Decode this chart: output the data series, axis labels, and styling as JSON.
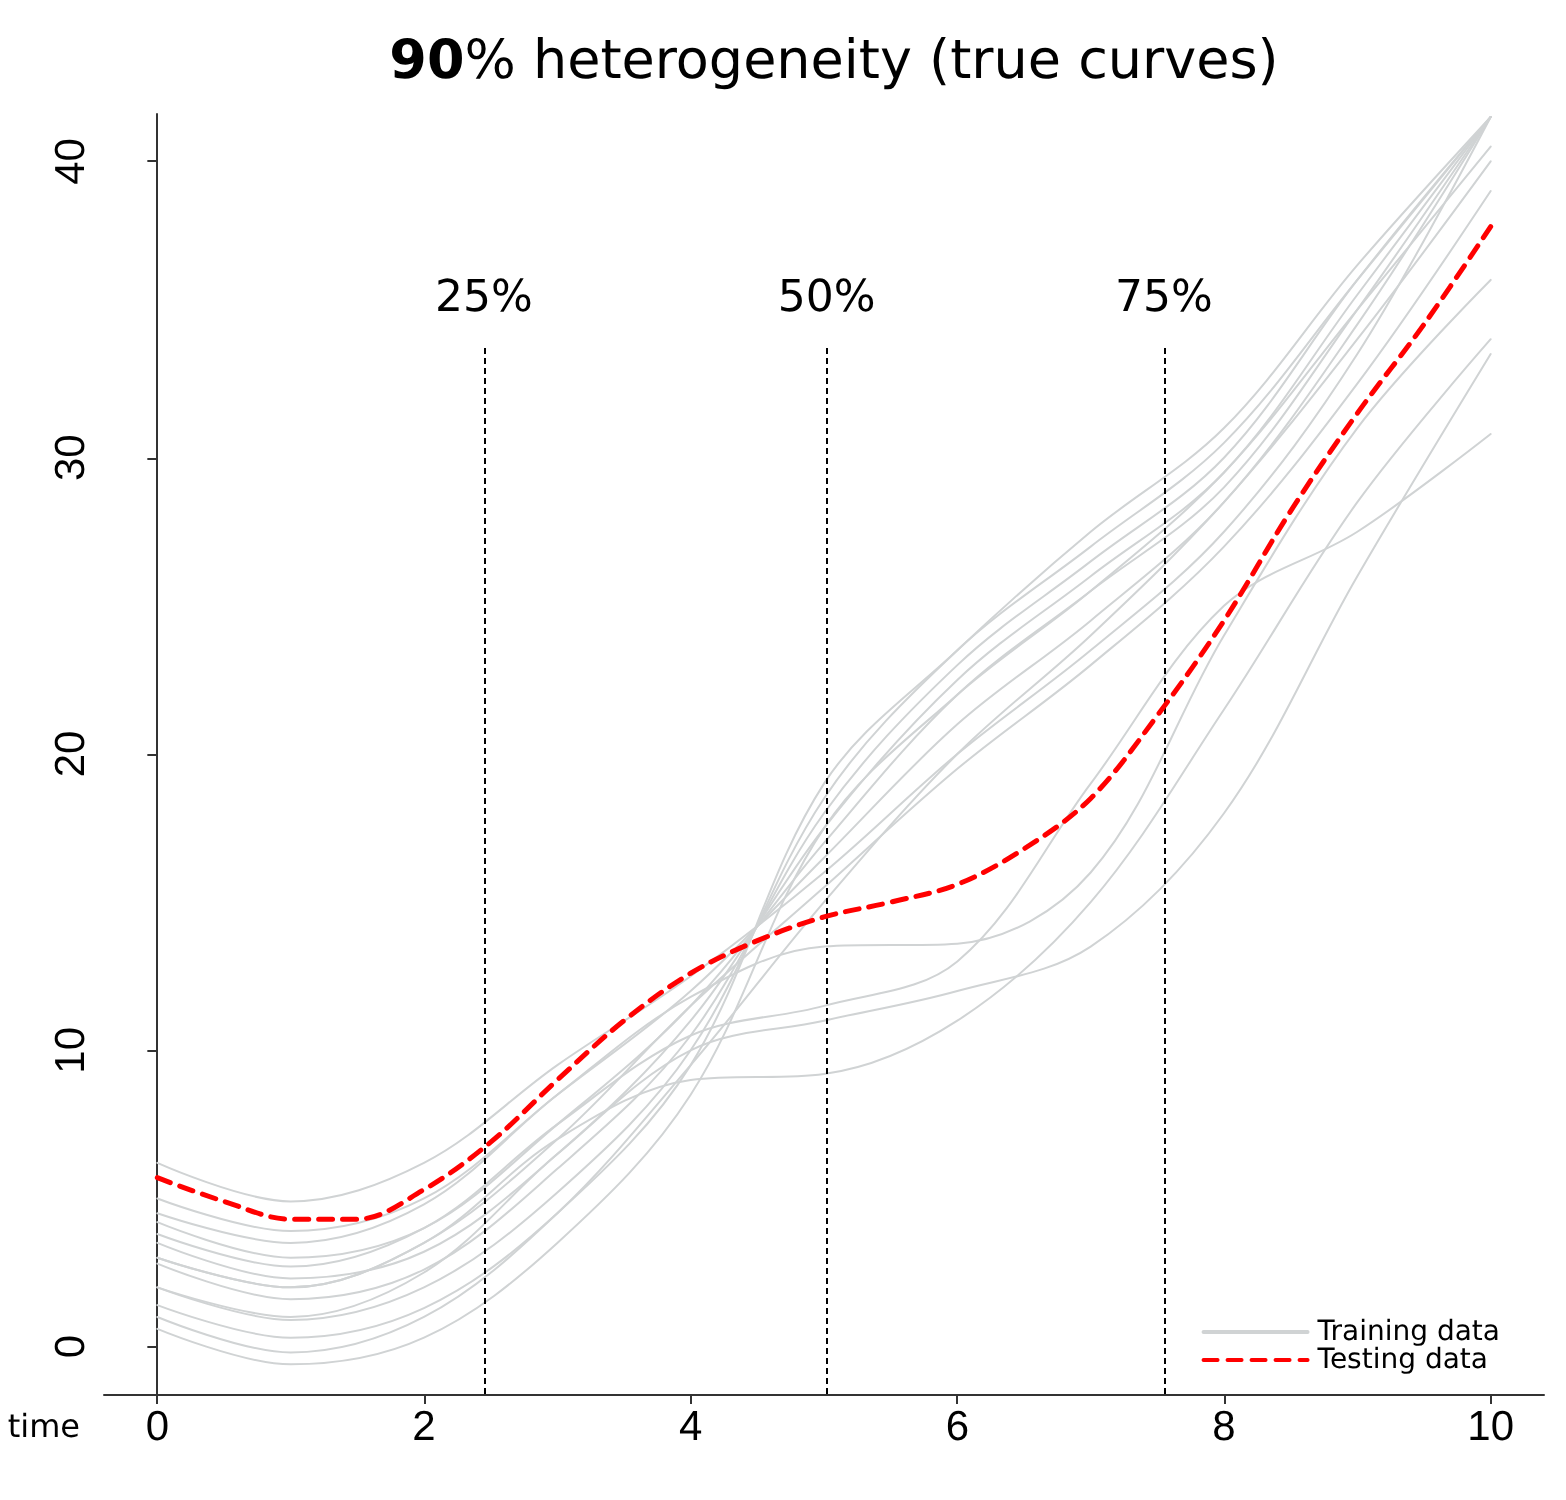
{
  "chart_data": {
    "type": "line",
    "title": "90% heterogeneity (true curves)",
    "xlabel": "time",
    "xlim": [
      -0.4,
      10.4
    ],
    "xticks": [
      0,
      2,
      4,
      6,
      8,
      10
    ],
    "ylim": [
      -1.6,
      41.6
    ],
    "yticks": [
      0,
      10,
      20,
      30,
      40
    ],
    "grid": false,
    "legend": "bottom right",
    "marker": "none",
    "ref_lines": [
      {
        "axis": "x",
        "value": 2.45
      },
      {
        "axis": "x",
        "value": 5.02
      },
      {
        "axis": "x",
        "value": 7.55
      }
    ],
    "annotations": [
      "25%",
      "50%",
      "75%"
    ],
    "series": [
      {
        "name": "Training data",
        "color": "#d0d3d4",
        "line_style": "solid",
        "x": [
          0,
          1,
          2,
          3,
          4,
          5,
          6,
          7,
          8,
          9,
          10
        ],
        "values": [
          6.2,
          4.9,
          6.2,
          9.5,
          12.5,
          16.0,
          20.0,
          23.5,
          27.5,
          33.5,
          41.5
        ]
      },
      {
        "color": "#d0d3d4",
        "line_style": "solid",
        "x": [
          0,
          1,
          2,
          3,
          4,
          5,
          6,
          7,
          8,
          9,
          10
        ],
        "values": [
          5.0,
          3.9,
          5.0,
          8.5,
          12.0,
          16.5,
          21.0,
          24.5,
          28.5,
          34.5,
          41.5
        ]
      },
      {
        "color": "#d0d3d4",
        "line_style": "solid",
        "x": [
          0,
          1,
          2,
          3,
          4,
          5,
          6,
          7,
          8,
          9,
          10
        ],
        "values": [
          4.2,
          3.0,
          4.0,
          7.5,
          11.5,
          17.0,
          22.0,
          25.5,
          29.0,
          35.0,
          41.5
        ]
      },
      {
        "color": "#d0d3d4",
        "line_style": "solid",
        "x": [
          0,
          1,
          2,
          3,
          4,
          5,
          6,
          7,
          8,
          9,
          10
        ],
        "values": [
          3.5,
          2.3,
          3.2,
          6.5,
          11.0,
          17.5,
          22.5,
          26.0,
          29.5,
          35.5,
          41.5
        ]
      },
      {
        "color": "#d0d3d4",
        "line_style": "solid",
        "x": [
          0,
          1,
          2,
          3,
          4,
          5,
          6,
          7,
          8,
          9,
          10
        ],
        "values": [
          2.8,
          1.6,
          2.6,
          6.0,
          10.5,
          18.0,
          23.0,
          26.5,
          30.0,
          36.0,
          41.5
        ]
      },
      {
        "color": "#d0d3d4",
        "line_style": "solid",
        "x": [
          0,
          1,
          2,
          3,
          4,
          5,
          6,
          7,
          8,
          9,
          10
        ],
        "values": [
          2.0,
          0.9,
          2.0,
          5.2,
          10.0,
          18.5,
          23.5,
          27.0,
          30.5,
          36.0,
          41.5
        ]
      },
      {
        "color": "#d0d3d4",
        "line_style": "solid",
        "x": [
          0,
          1,
          2,
          3,
          4,
          5,
          6,
          7,
          8,
          9,
          10
        ],
        "values": [
          1.4,
          0.3,
          1.3,
          4.5,
          9.5,
          19.0,
          23.5,
          27.5,
          31.0,
          36.5,
          41.5
        ]
      },
      {
        "color": "#d0d3d4",
        "line_style": "solid",
        "x": [
          0,
          1,
          2,
          3,
          4,
          5,
          6,
          7,
          8,
          9,
          10
        ],
        "values": [
          0.6,
          -0.6,
          0.3,
          3.5,
          8.5,
          17.5,
          22.0,
          25.5,
          29.5,
          35.0,
          40.5
        ]
      },
      {
        "color": "#d0d3d4",
        "line_style": "solid",
        "x": [
          0,
          1,
          2,
          3,
          4,
          5,
          6,
          7,
          8,
          9,
          10
        ],
        "values": [
          3.0,
          2.0,
          3.5,
          7.0,
          11.5,
          15.5,
          19.5,
          23.0,
          27.0,
          32.5,
          39.0
        ]
      },
      {
        "color": "#d0d3d4",
        "line_style": "solid",
        "x": [
          0,
          1,
          2,
          3,
          4,
          5,
          6,
          7,
          8,
          9,
          10
        ],
        "values": [
          1.0,
          -0.2,
          1.0,
          4.5,
          9.5,
          15.0,
          20.0,
          24.0,
          28.5,
          34.0,
          40.0
        ]
      },
      {
        "color": "#d0d3d4",
        "line_style": "solid",
        "x": [
          0,
          1,
          2,
          3,
          4,
          5,
          6,
          7,
          8,
          9,
          10
        ],
        "values": [
          4.5,
          3.5,
          4.8,
          8.5,
          11.8,
          13.5,
          13.6,
          16.0,
          24.0,
          31.0,
          36.0
        ]
      },
      {
        "color": "#d0d3d4",
        "line_style": "solid",
        "x": [
          0,
          1,
          2,
          3,
          4,
          5,
          6,
          7,
          8,
          9,
          10
        ],
        "values": [
          3.0,
          2.0,
          3.5,
          7.0,
          9.0,
          9.2,
          11.0,
          15.0,
          21.5,
          28.5,
          34.0
        ]
      },
      {
        "color": "#d0d3d4",
        "line_style": "solid",
        "x": [
          0,
          1,
          2,
          3,
          4,
          5,
          6,
          7,
          8,
          9,
          10
        ],
        "values": [
          2.0,
          1.0,
          2.5,
          6.5,
          10.0,
          11.0,
          12.0,
          13.5,
          18.0,
          26.0,
          33.5
        ]
      },
      {
        "color": "#d0d3d4",
        "line_style": "solid",
        "x": [
          0,
          1,
          2,
          3,
          4,
          5,
          6,
          7,
          8,
          9,
          10
        ],
        "values": [
          3.8,
          2.7,
          4.0,
          7.5,
          10.5,
          11.5,
          13.0,
          19.0,
          25.0,
          27.5,
          30.8
        ]
      },
      {
        "name": "Testing data",
        "color": "#ff0000",
        "line_style": "dashed",
        "x": [
          0,
          0.5,
          1,
          1.5,
          2,
          2.5,
          3,
          3.5,
          4,
          4.5,
          5,
          5.5,
          6,
          6.5,
          7,
          7.5,
          8,
          8.5,
          9,
          9.5,
          10
        ],
        "values": [
          5.7,
          4.9,
          4.3,
          4.3,
          5.3,
          6.9,
          9.0,
          11.0,
          12.6,
          13.7,
          14.5,
          15.0,
          15.6,
          16.8,
          18.5,
          21.3,
          24.5,
          28.2,
          31.5,
          34.5,
          37.8
        ]
      }
    ]
  }
}
